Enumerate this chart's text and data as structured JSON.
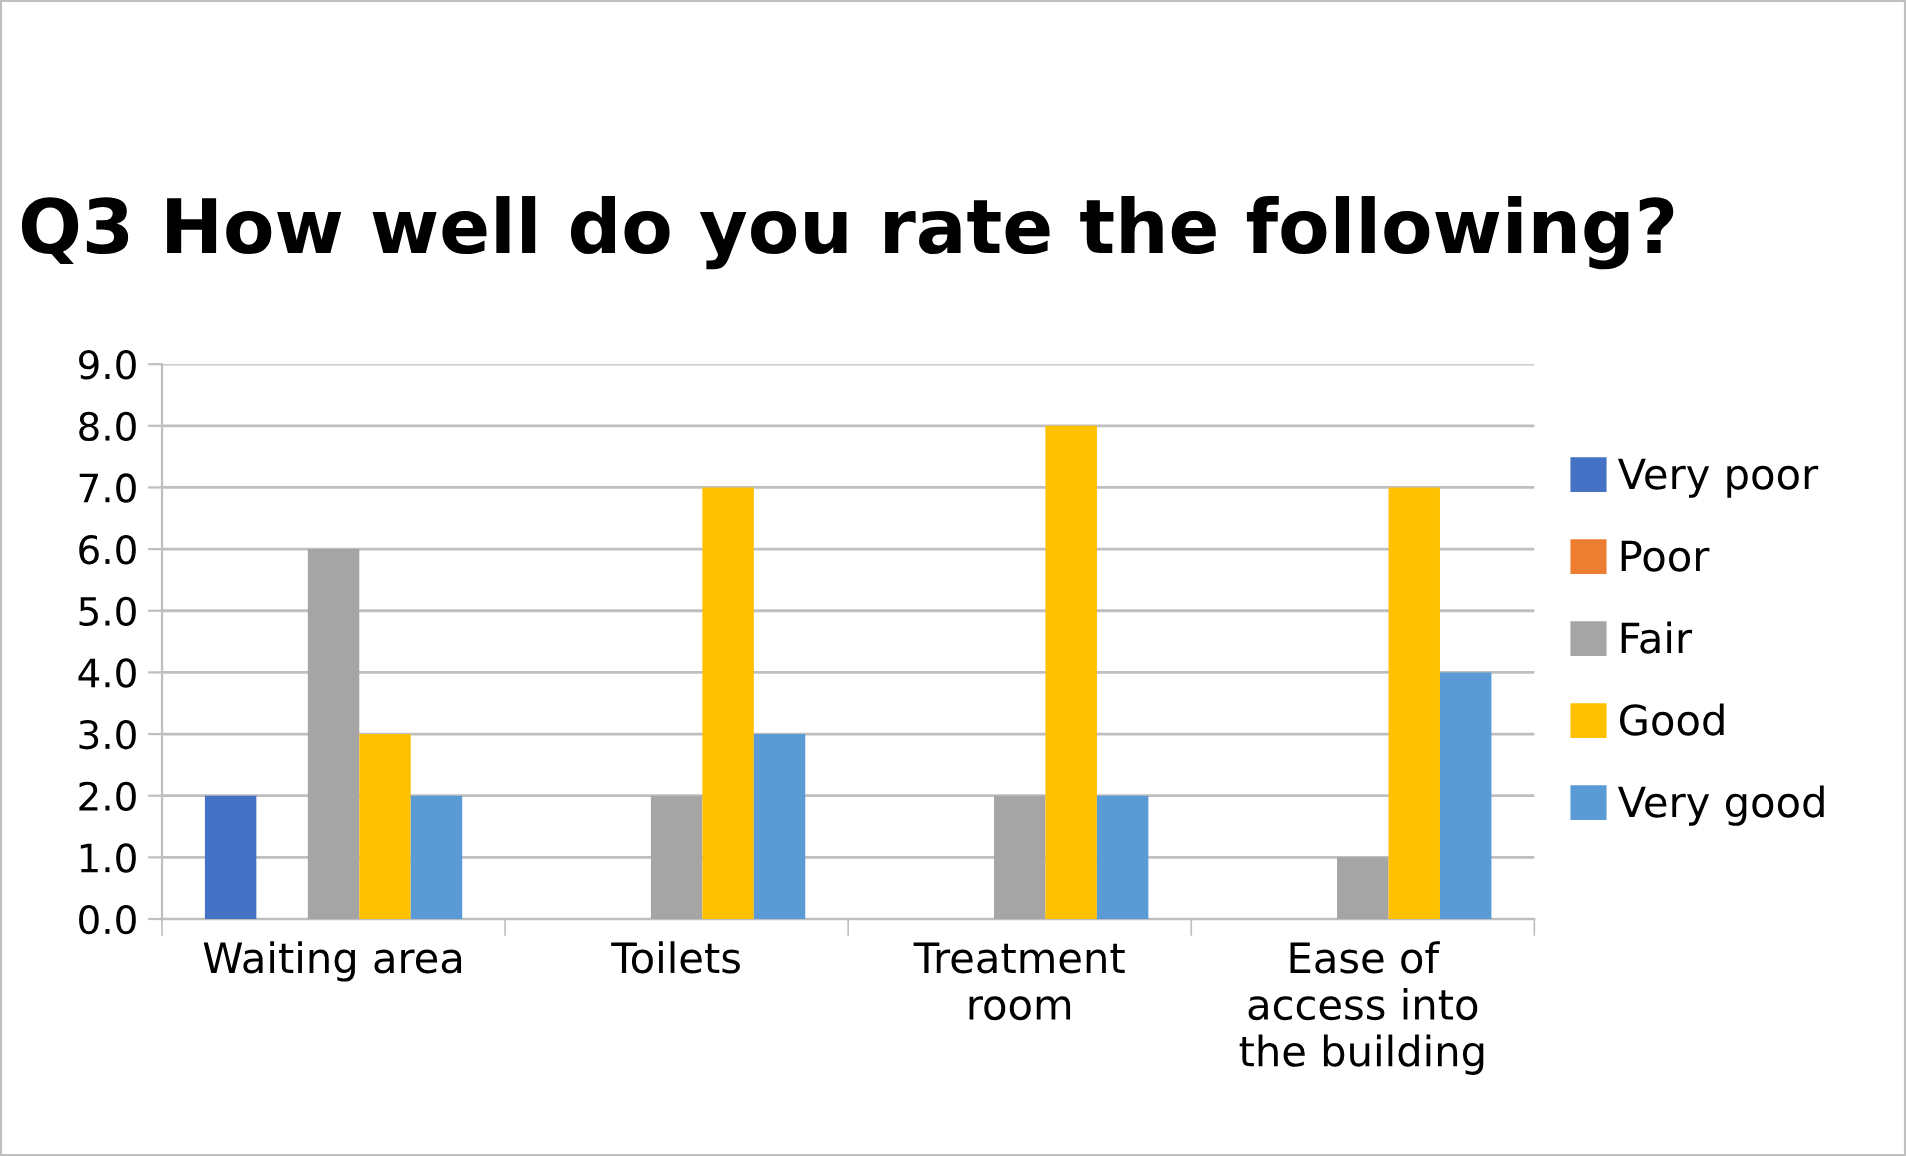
{
  "chart_data": {
    "type": "bar",
    "title": "Q3 How well do you rate the following?",
    "categories": [
      "Waiting area",
      "Toilets",
      "Treatment room",
      "Ease of access into the building"
    ],
    "series": [
      {
        "name": "Very poor",
        "color": "#4472c4",
        "values": [
          2,
          0,
          0,
          0
        ]
      },
      {
        "name": "Poor",
        "color": "#ed7d31",
        "values": [
          0,
          0,
          0,
          0
        ]
      },
      {
        "name": "Fair",
        "color": "#a5a5a5",
        "values": [
          6,
          2,
          2,
          1
        ]
      },
      {
        "name": "Good",
        "color": "#ffc000",
        "values": [
          3,
          7,
          8,
          7
        ]
      },
      {
        "name": "Very good",
        "color": "#5b9bd5",
        "values": [
          2,
          3,
          2,
          4
        ]
      }
    ],
    "ylim": [
      0,
      9
    ],
    "yticks": [
      {
        "value": 0,
        "label": "0.0"
      },
      {
        "value": 1,
        "label": "1.0"
      },
      {
        "value": 2,
        "label": "2.0"
      },
      {
        "value": 3,
        "label": "3.0"
      },
      {
        "value": 4,
        "label": "4.0"
      },
      {
        "value": 5,
        "label": "5.0"
      },
      {
        "value": 6,
        "label": "6.0"
      },
      {
        "value": 7,
        "label": "7.0"
      },
      {
        "value": 8,
        "label": "8.0"
      },
      {
        "value": 9,
        "label": "9.0"
      }
    ],
    "grid": "y",
    "legend": "right"
  }
}
